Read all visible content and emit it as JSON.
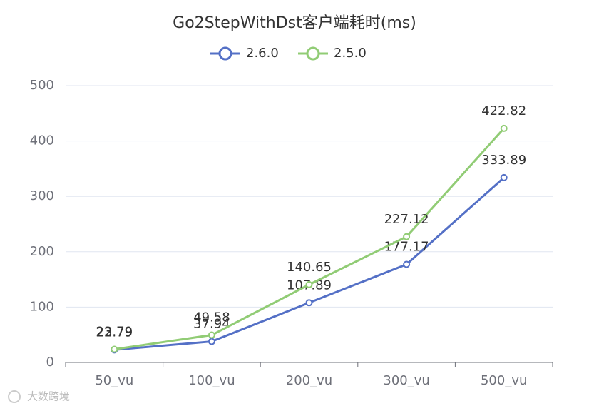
{
  "chart_data": {
    "type": "line",
    "title": "Go2StepWithDst客户端耗时(ms)",
    "categories": [
      "50_vu",
      "100_vu",
      "200_vu",
      "300_vu",
      "500_vu"
    ],
    "series": [
      {
        "name": "2.6.0",
        "color": "#5470c6",
        "values": [
          22.79,
          37.94,
          107.89,
          177.17,
          333.89
        ]
      },
      {
        "name": "2.5.0",
        "color": "#91cc75",
        "values": [
          23.79,
          49.58,
          140.65,
          227.12,
          422.82
        ]
      }
    ],
    "ylim": [
      0,
      500
    ],
    "yticks": [
      0,
      100,
      200,
      300,
      400,
      500
    ],
    "grid": true
  },
  "watermark": "大数跨境"
}
